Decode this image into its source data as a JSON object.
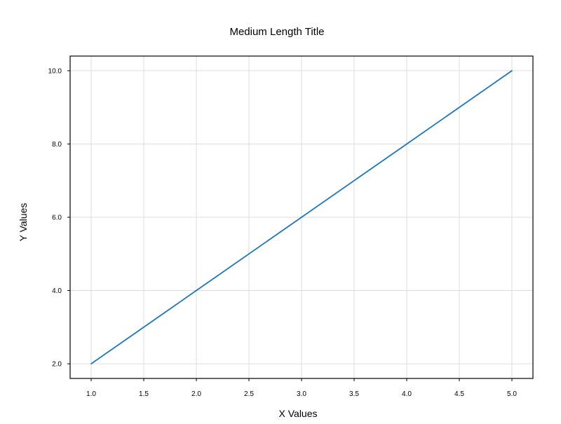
{
  "chart_data": {
    "type": "line",
    "title": "Medium Length Title",
    "xlabel": "X Values",
    "ylabel": "Y Values",
    "xlim": [
      0.8,
      5.2
    ],
    "ylim": [
      1.6,
      10.4
    ],
    "x_ticks": [
      1.0,
      1.5,
      2.0,
      2.5,
      3.0,
      3.5,
      4.0,
      4.5,
      5.0
    ],
    "x_tick_labels": [
      "1.0",
      "1.5",
      "2.0",
      "2.5",
      "3.0",
      "3.5",
      "4.0",
      "4.5",
      "5.0"
    ],
    "y_ticks": [
      2.0,
      4.0,
      6.0,
      8.0,
      10.0
    ],
    "y_tick_labels": [
      "2.0",
      "4.0",
      "6.0",
      "8.0",
      "10.0"
    ],
    "grid": true,
    "series": [
      {
        "x": [
          1.0,
          2.0,
          3.0,
          4.0,
          5.0
        ],
        "y": [
          2.0,
          4.0,
          6.0,
          8.0,
          10.0
        ],
        "color": "#1f77b4"
      }
    ]
  },
  "colors": {
    "grid": "#dddddd",
    "axis": "#000000",
    "background": "#ffffff"
  }
}
